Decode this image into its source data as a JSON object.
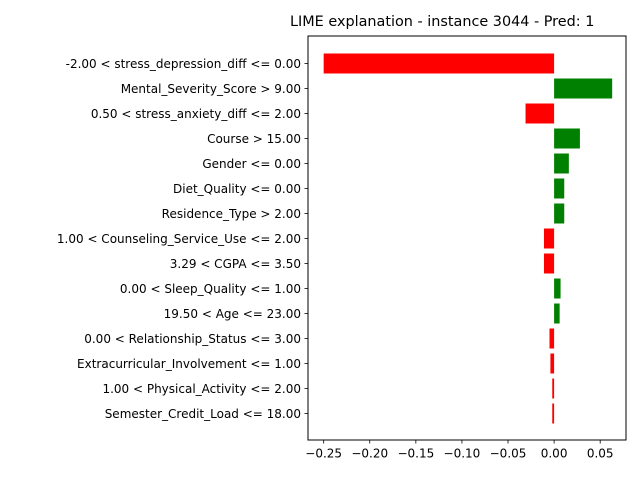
{
  "chart_data": {
    "type": "bar",
    "orientation": "horizontal",
    "title": "LIME explanation - instance 3044 - Pred: 1",
    "xlabel": "",
    "ylabel": "",
    "xlim": [
      -0.267,
      0.078
    ],
    "xticks": [
      -0.25,
      -0.2,
      -0.15,
      -0.1,
      -0.05,
      0.0,
      0.05
    ],
    "xtick_labels": [
      "−0.25",
      "−0.20",
      "−0.15",
      "−0.10",
      "−0.05",
      "0.00",
      "0.05"
    ],
    "grid": false,
    "positive_color": "#008000",
    "negative_color": "#ff0000",
    "categories": [
      "-2.00 < stress_depression_diff <= 0.00",
      "Mental_Severity_Score > 9.00",
      "0.50 < stress_anxiety_diff <= 2.00",
      "Course > 15.00",
      "Gender <= 0.00",
      "Diet_Quality <= 0.00",
      "Residence_Type > 2.00",
      "1.00 < Counseling_Service_Use <= 2.00",
      "3.29 < CGPA <= 3.50",
      "0.00 < Sleep_Quality <= 1.00",
      "19.50 < Age <= 23.00",
      "0.00 < Relationship_Status <= 3.00",
      "Extracurricular_Involvement <= 1.00",
      "1.00 < Physical_Activity <= 2.00",
      "Semester_Credit_Load <= 18.00"
    ],
    "values": [
      -0.25,
      0.063,
      -0.031,
      0.028,
      0.016,
      0.011,
      0.011,
      -0.011,
      -0.011,
      0.007,
      0.006,
      -0.005,
      -0.004,
      -0.002,
      -0.002
    ]
  }
}
